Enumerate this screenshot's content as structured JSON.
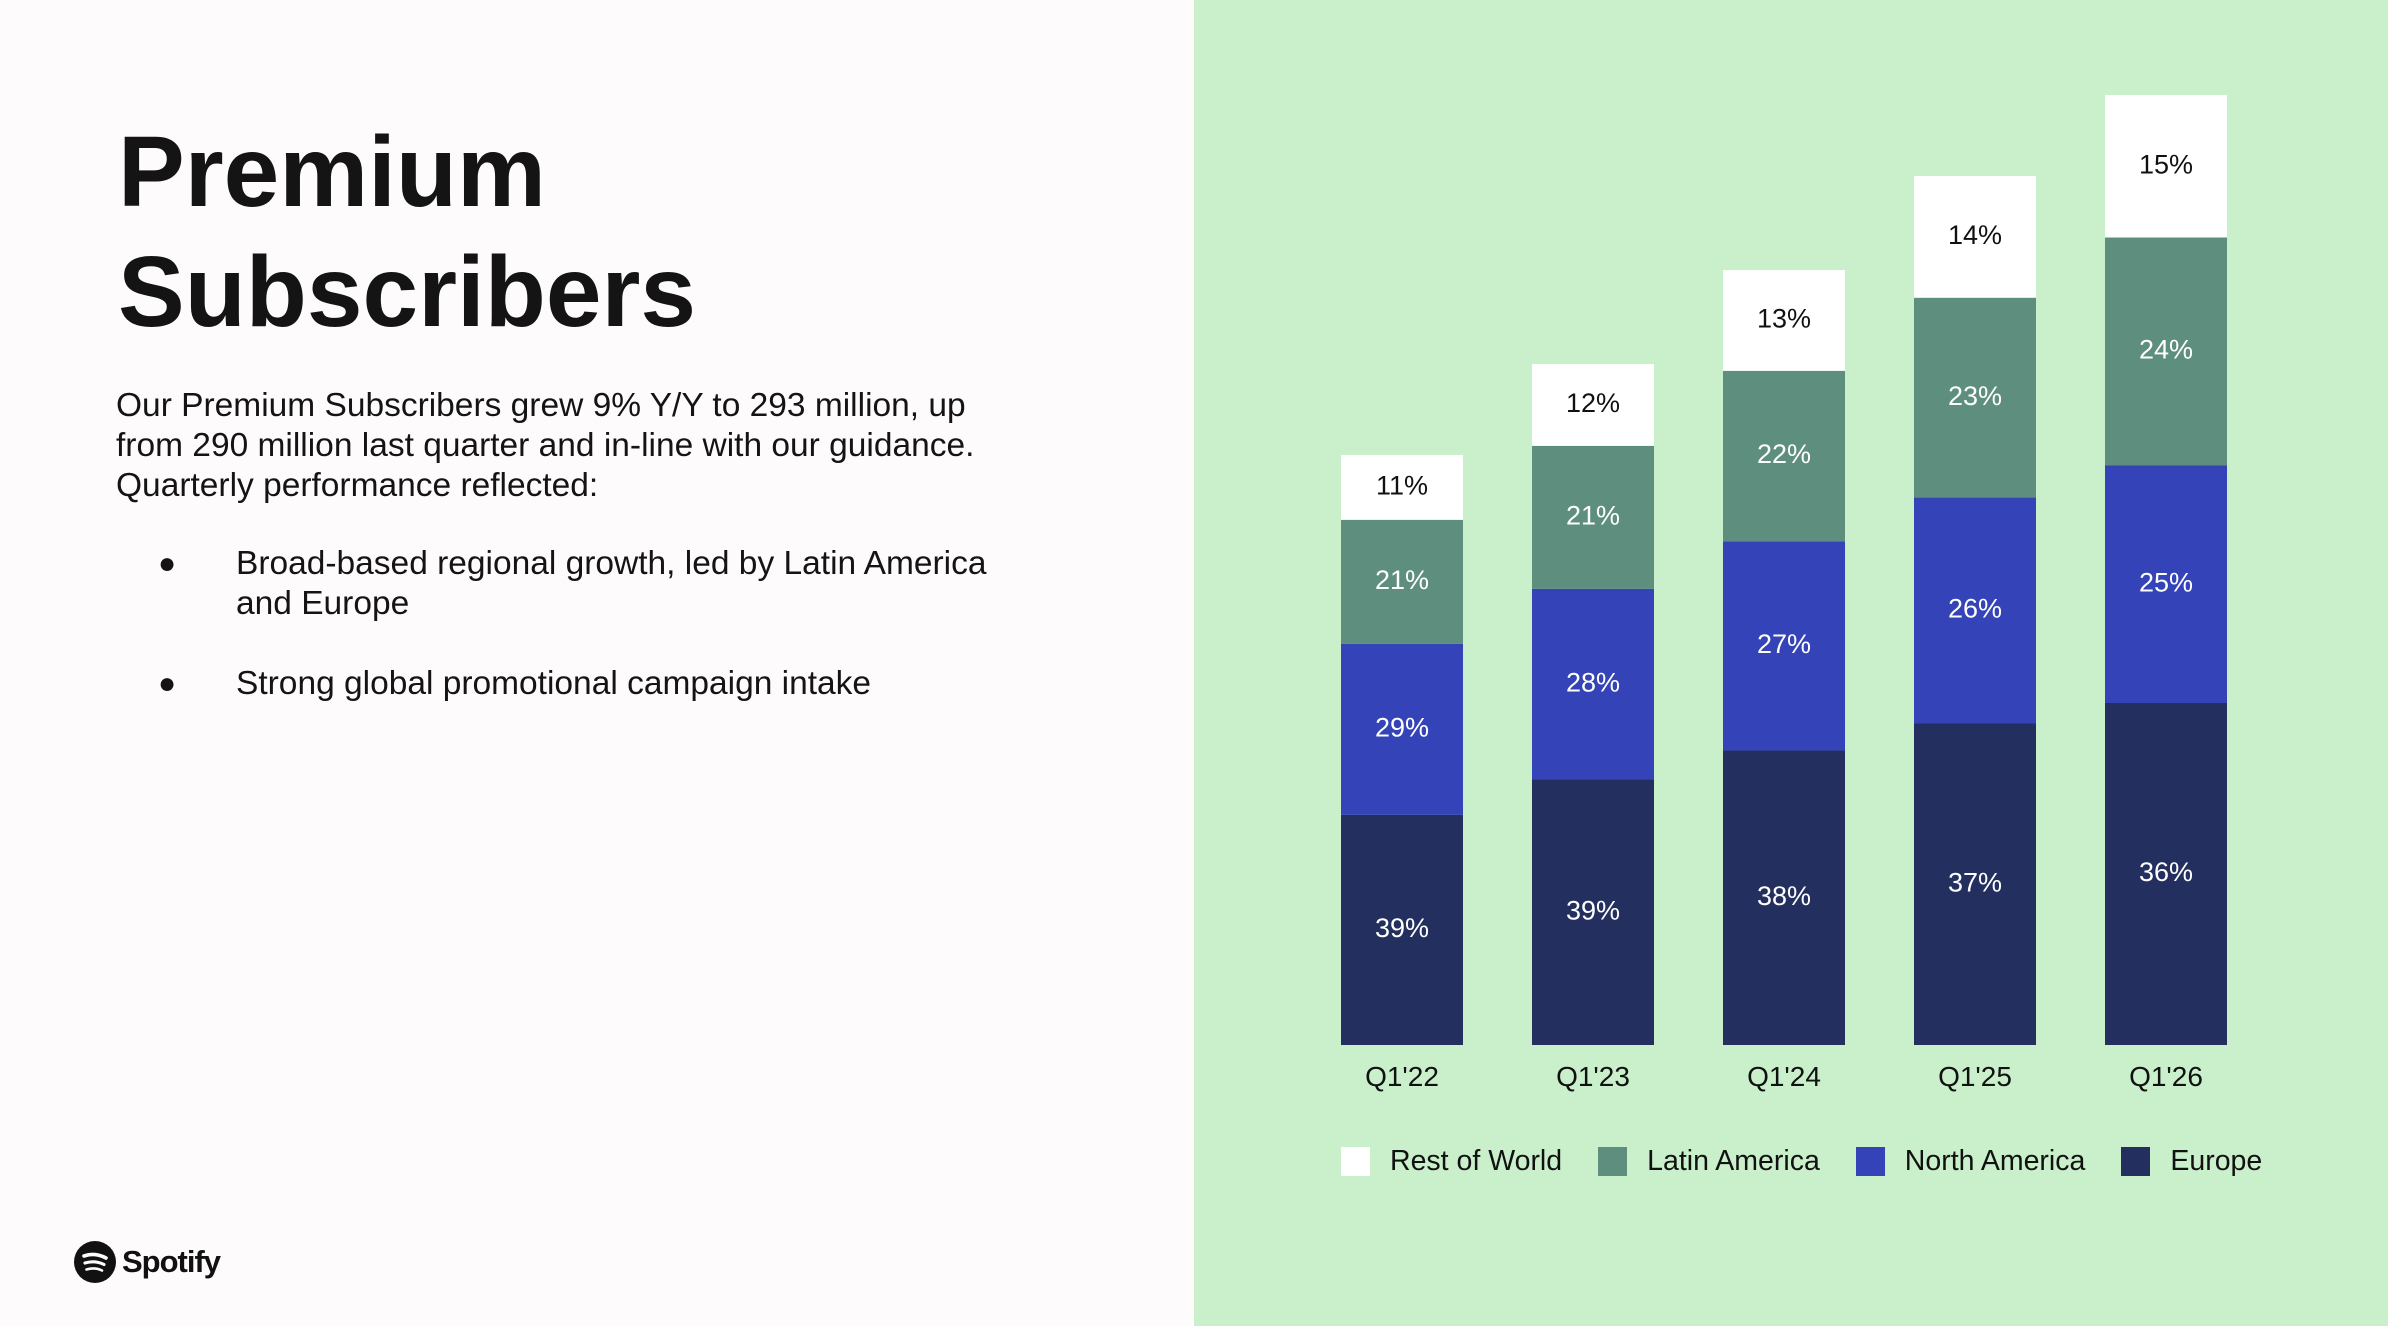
{
  "slide": {
    "title_lines": [
      "Premium",
      "Subscribers"
    ],
    "intro": "Our Premium Subscribers grew 9% Y/Y to 293 million, up from 290 million last quarter and in-line with our guidance. Quarterly performance reflected:",
    "bullets": [
      "Broad-based regional growth, led by Latin America and Europe",
      "Strong global promotional campaign intake"
    ],
    "logo_text": "Spotify"
  },
  "colors": {
    "left_background": "#fdfbfc",
    "right_background": "#c9efcb"
  },
  "chart_data": {
    "type": "bar",
    "stacked": true,
    "categories": [
      "Q1'22",
      "Q1'23",
      "Q1'24",
      "Q1'25",
      "Q1'26"
    ],
    "series": [
      {
        "name": "Europe",
        "color": "#232f5e",
        "label_color": "#ffffff",
        "values": [
          39,
          39,
          38,
          37,
          36
        ]
      },
      {
        "name": "North America",
        "color": "#3443b8",
        "label_color": "#ffffff",
        "values": [
          29,
          28,
          27,
          26,
          25
        ]
      },
      {
        "name": "Latin America",
        "color": "#5e8f7e",
        "label_color": "#ffffff",
        "values": [
          21,
          21,
          22,
          23,
          24
        ]
      },
      {
        "name": "Rest of World",
        "color": "#ffffff",
        "label_color": "#111111",
        "values": [
          11,
          12,
          13,
          14,
          15
        ]
      }
    ],
    "data_labels": [
      [
        "39%",
        "39%",
        "38%",
        "37%",
        "36%"
      ],
      [
        "29%",
        "28%",
        "27%",
        "26%",
        "25%"
      ],
      [
        "21%",
        "21%",
        "22%",
        "23%",
        "24%"
      ],
      [
        "11%",
        "12%",
        "13%",
        "14%",
        "15%"
      ]
    ],
    "bar_totals_subscribers_m": [
      182,
      210,
      239,
      268,
      293
    ],
    "legend_order": [
      "Rest of World",
      "Latin America",
      "North America",
      "Europe"
    ],
    "legend_position": "bottom",
    "grid": false,
    "y_axis_visible": false
  }
}
